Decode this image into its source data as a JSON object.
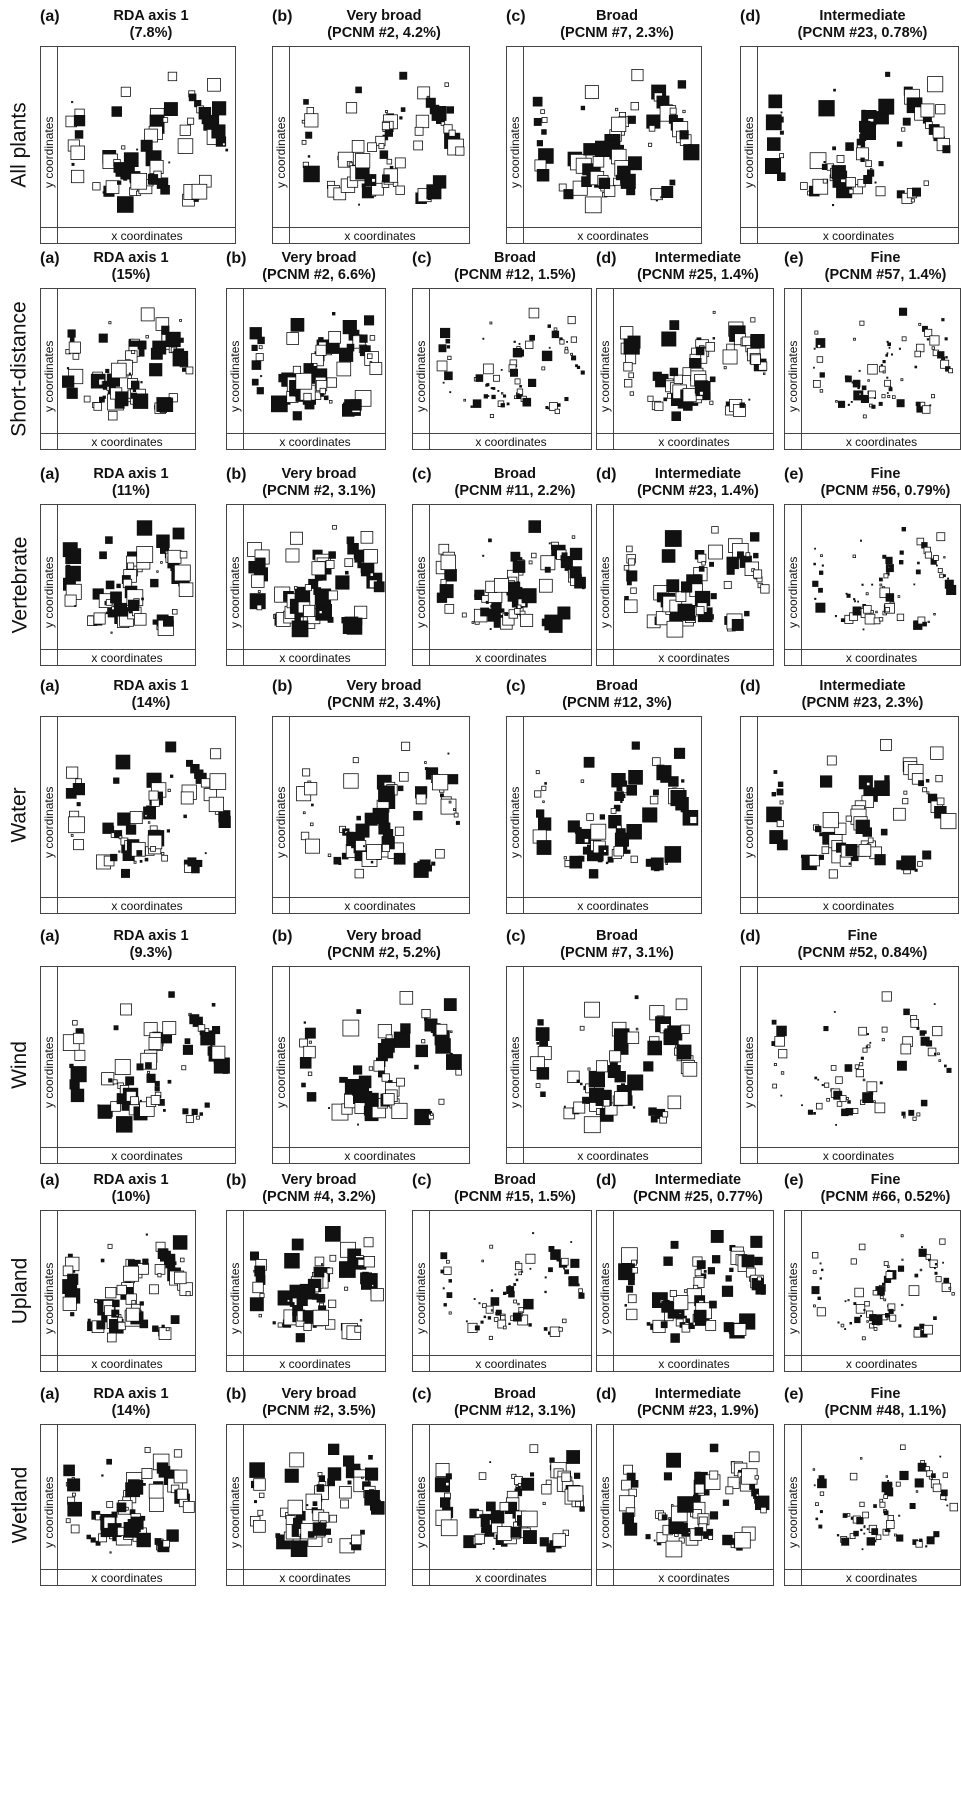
{
  "axis_labels": {
    "x": "x coordinates",
    "y": "y coordinates"
  },
  "rows": [
    {
      "label": "All plants",
      "panels": [
        {
          "tag": "(a)",
          "title": "RDA axis 1",
          "subtitle": "(7.8%)"
        },
        {
          "tag": "(b)",
          "title": "Very broad",
          "subtitle": "(PCNM #2, 4.2%)"
        },
        {
          "tag": "(c)",
          "title": "Broad",
          "subtitle": "(PCNM #7, 2.3%)"
        },
        {
          "tag": "(d)",
          "title": "Intermediate",
          "subtitle": "(PCNM #23, 0.78%)"
        }
      ]
    },
    {
      "label": "Short-distance",
      "panels": [
        {
          "tag": "(a)",
          "title": "RDA axis 1",
          "subtitle": "(15%)"
        },
        {
          "tag": "(b)",
          "title": "Very broad",
          "subtitle": "(PCNM #2, 6.6%)"
        },
        {
          "tag": "(c)",
          "title": "Broad",
          "subtitle": "(PCNM #12, 1.5%)"
        },
        {
          "tag": "(d)",
          "title": "Intermediate",
          "subtitle": "(PCNM #25, 1.4%)"
        },
        {
          "tag": "(e)",
          "title": "Fine",
          "subtitle": "(PCNM #57, 1.4%)"
        }
      ]
    },
    {
      "label": "Vertebrate",
      "panels": [
        {
          "tag": "(a)",
          "title": "RDA axis 1",
          "subtitle": "(11%)"
        },
        {
          "tag": "(b)",
          "title": "Very broad",
          "subtitle": "(PCNM #2, 3.1%)"
        },
        {
          "tag": "(c)",
          "title": "Broad",
          "subtitle": "(PCNM #11, 2.2%)"
        },
        {
          "tag": "(d)",
          "title": "Intermediate",
          "subtitle": "(PCNM #23, 1.4%)"
        },
        {
          "tag": "(e)",
          "title": "Fine",
          "subtitle": "(PCNM #56, 0.79%)"
        }
      ]
    },
    {
      "label": "Water",
      "panels": [
        {
          "tag": "(a)",
          "title": "RDA axis 1",
          "subtitle": "(14%)"
        },
        {
          "tag": "(b)",
          "title": "Very broad",
          "subtitle": "(PCNM #2, 3.4%)"
        },
        {
          "tag": "(c)",
          "title": "Broad",
          "subtitle": "(PCNM #12, 3%)"
        },
        {
          "tag": "(d)",
          "title": "Intermediate",
          "subtitle": "(PCNM #23, 2.3%)"
        }
      ]
    },
    {
      "label": "Wind",
      "panels": [
        {
          "tag": "(a)",
          "title": "RDA axis 1",
          "subtitle": "(9.3%)"
        },
        {
          "tag": "(b)",
          "title": "Very broad",
          "subtitle": "(PCNM #2, 5.2%)"
        },
        {
          "tag": "(c)",
          "title": "Broad",
          "subtitle": "(PCNM #7, 3.1%)"
        },
        {
          "tag": "(d)",
          "title": "Fine",
          "subtitle": "(PCNM #52, 0.84%)"
        }
      ]
    },
    {
      "label": "Upland",
      "panels": [
        {
          "tag": "(a)",
          "title": "RDA axis 1",
          "subtitle": "(10%)"
        },
        {
          "tag": "(b)",
          "title": "Very broad",
          "subtitle": "(PCNM #4, 3.2%)"
        },
        {
          "tag": "(c)",
          "title": "Broad",
          "subtitle": "(PCNM #15, 1.5%)"
        },
        {
          "tag": "(d)",
          "title": "Intermediate",
          "subtitle": "(PCNM #25, 0.77%)"
        },
        {
          "tag": "(e)",
          "title": "Fine",
          "subtitle": "(PCNM #66, 0.52%)"
        }
      ]
    },
    {
      "label": "Wetland",
      "panels": [
        {
          "tag": "(a)",
          "title": "RDA axis 1",
          "subtitle": "(14%)"
        },
        {
          "tag": "(b)",
          "title": "Very broad",
          "subtitle": "(PCNM #2, 3.5%)"
        },
        {
          "tag": "(c)",
          "title": "Broad",
          "subtitle": "(PCNM #12, 3.1%)"
        },
        {
          "tag": "(d)",
          "title": "Intermediate",
          "subtitle": "(PCNM #23, 1.9%)"
        },
        {
          "tag": "(e)",
          "title": "Fine",
          "subtitle": "(PCNM #48, 1.1%)"
        }
      ]
    }
  ],
  "chart_data": {
    "type": "scatter",
    "description_of_marks": "square symbols; filled = positive, open = negative; size proportional to magnitude",
    "xlabel": "x coordinates",
    "ylabel": "y coordinates",
    "grid": false,
    "colors": {
      "positive": "#111111",
      "negative": "#ffffff",
      "outline": "#111111"
    }
  }
}
